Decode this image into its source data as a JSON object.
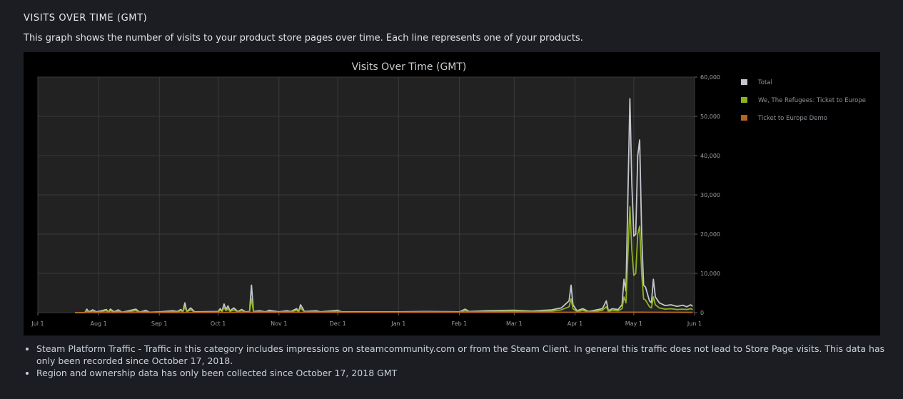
{
  "section": {
    "heading": "VISITS OVER TIME (GMT)",
    "description": "This graph shows the number of visits to your product store pages over time. Each line represents one of your products."
  },
  "notes": [
    "Steam Platform Traffic - Traffic in this category includes impressions on steamcommunity.com or from the Steam Client. In general this traffic does not lead to Store Page visits. This data has only been recorded since October 17, 2018.",
    "Region and ownership data has only been collected since October 17, 2018 GMT"
  ],
  "colors": {
    "page_background": "#1b1d22",
    "chart_background": "#000000",
    "plot_background": "#222222",
    "total": "#c3c6cc",
    "refugees": "#8fb21f",
    "demo": "#b5651d"
  },
  "chart_data": {
    "type": "line",
    "title": "Visits Over Time (GMT)",
    "xlabel": "",
    "ylabel": "",
    "y_axis_position": "right",
    "legend_position": "right",
    "grid": true,
    "x_ticks": [
      "Jul 1",
      "Aug 1",
      "Sep 1",
      "Oct 1",
      "Nov 1",
      "Dec 1",
      "Jan 1",
      "Feb 1",
      "Mar 1",
      "Apr 1",
      "May 1",
      "Jun 1"
    ],
    "y_ticks": [
      "60,000",
      "50,000",
      "40,000",
      "30,000",
      "20,000",
      "10,000",
      "0"
    ],
    "xlim": [
      "Jul 1",
      "Jun 1"
    ],
    "ylim": [
      0,
      60000
    ],
    "series": [
      {
        "name": "Total",
        "color": "#c3c6cc",
        "points": [
          [
            "Jul 20",
            0
          ],
          [
            "Jul 25",
            0
          ],
          [
            "Jul 26",
            900
          ],
          [
            "Jul 27",
            200
          ],
          [
            "Jul 29",
            700
          ],
          [
            "Jul 31",
            200
          ],
          [
            "Aug 5",
            800
          ],
          [
            "Aug 6",
            100
          ],
          [
            "Aug 7",
            900
          ],
          [
            "Aug 9",
            200
          ],
          [
            "Aug 11",
            700
          ],
          [
            "Aug 13",
            100
          ],
          [
            "Aug 20",
            900
          ],
          [
            "Aug 22",
            100
          ],
          [
            "Aug 25",
            600
          ],
          [
            "Aug 27",
            100
          ],
          [
            "Sep 1",
            200
          ],
          [
            "Sep 8",
            500
          ],
          [
            "Sep 10",
            300
          ],
          [
            "Sep 12",
            800
          ],
          [
            "Sep 13",
            300
          ],
          [
            "Sep 14",
            2500
          ],
          [
            "Sep 15",
            300
          ],
          [
            "Sep 17",
            1200
          ],
          [
            "Sep 19",
            200
          ],
          [
            "Oct 1",
            300
          ],
          [
            "Oct 2",
            1000
          ],
          [
            "Oct 3",
            400
          ],
          [
            "Oct 4",
            2200
          ],
          [
            "Oct 5",
            800
          ],
          [
            "Oct 6",
            1700
          ],
          [
            "Oct 7",
            500
          ],
          [
            "Oct 9",
            1200
          ],
          [
            "Oct 11",
            300
          ],
          [
            "Oct 13",
            800
          ],
          [
            "Oct 15",
            200
          ],
          [
            "Oct 17",
            300
          ],
          [
            "Oct 18",
            7000
          ],
          [
            "Oct 19",
            300
          ],
          [
            "Oct 22",
            500
          ],
          [
            "Oct 25",
            200
          ],
          [
            "Oct 27",
            600
          ],
          [
            "Nov 1",
            200
          ],
          [
            "Nov 5",
            500
          ],
          [
            "Nov 7",
            300
          ],
          [
            "Nov 10",
            1000
          ],
          [
            "Nov 11",
            300
          ],
          [
            "Nov 12",
            2000
          ],
          [
            "Nov 13",
            1200
          ],
          [
            "Nov 14",
            300
          ],
          [
            "Nov 20",
            500
          ],
          [
            "Nov 22",
            200
          ],
          [
            "Dec 1",
            600
          ],
          [
            "Dec 3",
            200
          ],
          [
            "Dec 15",
            200
          ],
          [
            "Jan 1",
            200
          ],
          [
            "Jan 15",
            300
          ],
          [
            "Feb 1",
            200
          ],
          [
            "Feb 4",
            900
          ],
          [
            "Feb 6",
            300
          ],
          [
            "Feb 15",
            500
          ],
          [
            "Mar 1",
            600
          ],
          [
            "Mar 10",
            400
          ],
          [
            "Mar 20",
            700
          ],
          [
            "Mar 25",
            1200
          ],
          [
            "Mar 29",
            3000
          ],
          [
            "Mar 30",
            7000
          ],
          [
            "Mar 31",
            2000
          ],
          [
            "Apr 2",
            500
          ],
          [
            "Apr 5",
            1000
          ],
          [
            "Apr 8",
            300
          ],
          [
            "Apr 12",
            700
          ],
          [
            "Apr 15",
            1000
          ],
          [
            "Apr 17",
            3000
          ],
          [
            "Apr 18",
            500
          ],
          [
            "Apr 20",
            1000
          ],
          [
            "Apr 23",
            800
          ],
          [
            "Apr 25",
            2000
          ],
          [
            "Apr 26",
            8500
          ],
          [
            "Apr 27",
            5500
          ],
          [
            "Apr 29",
            54500
          ],
          [
            "Apr 30",
            33000
          ],
          [
            "May 1",
            19500
          ],
          [
            "May 2",
            20000
          ],
          [
            "May 3",
            40000
          ],
          [
            "May 4",
            44000
          ],
          [
            "May 5",
            20000
          ],
          [
            "May 6",
            7000
          ],
          [
            "May 7",
            6500
          ],
          [
            "May 9",
            3000
          ],
          [
            "May 10",
            2500
          ],
          [
            "May 11",
            8500
          ],
          [
            "May 12",
            4000
          ],
          [
            "May 14",
            2500
          ],
          [
            "May 17",
            1800
          ],
          [
            "May 20",
            2000
          ],
          [
            "May 23",
            1600
          ],
          [
            "May 26",
            1900
          ],
          [
            "May 28",
            1500
          ],
          [
            "May 30",
            2000
          ],
          [
            "May 31",
            1600
          ]
        ]
      },
      {
        "name": "We, The Refugees: Ticket to Europe",
        "color": "#8fb21f",
        "points": [
          [
            "Jul 20",
            0
          ],
          [
            "Jul 25",
            0
          ],
          [
            "Jul 26",
            500
          ],
          [
            "Jul 27",
            100
          ],
          [
            "Jul 29",
            400
          ],
          [
            "Jul 31",
            100
          ],
          [
            "Aug 5",
            500
          ],
          [
            "Aug 6",
            100
          ],
          [
            "Aug 7",
            500
          ],
          [
            "Aug 9",
            100
          ],
          [
            "Aug 11",
            400
          ],
          [
            "Aug 13",
            100
          ],
          [
            "Aug 20",
            500
          ],
          [
            "Aug 22",
            100
          ],
          [
            "Aug 25",
            300
          ],
          [
            "Aug 27",
            100
          ],
          [
            "Sep 1",
            100
          ],
          [
            "Sep 8",
            300
          ],
          [
            "Sep 10",
            200
          ],
          [
            "Sep 12",
            500
          ],
          [
            "Sep 13",
            200
          ],
          [
            "Sep 14",
            1500
          ],
          [
            "Sep 15",
            200
          ],
          [
            "Sep 17",
            700
          ],
          [
            "Sep 19",
            100
          ],
          [
            "Oct 1",
            200
          ],
          [
            "Oct 2",
            600
          ],
          [
            "Oct 3",
            300
          ],
          [
            "Oct 4",
            1300
          ],
          [
            "Oct 5",
            500
          ],
          [
            "Oct 6",
            1000
          ],
          [
            "Oct 7",
            300
          ],
          [
            "Oct 9",
            700
          ],
          [
            "Oct 11",
            200
          ],
          [
            "Oct 13",
            500
          ],
          [
            "Oct 15",
            100
          ],
          [
            "Oct 17",
            200
          ],
          [
            "Oct 18",
            3500
          ],
          [
            "Oct 19",
            200
          ],
          [
            "Oct 22",
            300
          ],
          [
            "Oct 25",
            100
          ],
          [
            "Oct 27",
            300
          ],
          [
            "Nov 1",
            100
          ],
          [
            "Nov 5",
            300
          ],
          [
            "Nov 7",
            200
          ],
          [
            "Nov 10",
            600
          ],
          [
            "Nov 11",
            200
          ],
          [
            "Nov 12",
            1200
          ],
          [
            "Nov 13",
            700
          ],
          [
            "Nov 14",
            200
          ],
          [
            "Nov 20",
            300
          ],
          [
            "Nov 22",
            100
          ],
          [
            "Dec 1",
            400
          ],
          [
            "Dec 3",
            100
          ],
          [
            "Dec 15",
            100
          ],
          [
            "Jan 1",
            100
          ],
          [
            "Jan 15",
            200
          ],
          [
            "Feb 1",
            100
          ],
          [
            "Feb 4",
            500
          ],
          [
            "Feb 6",
            200
          ],
          [
            "Feb 15",
            300
          ],
          [
            "Mar 1",
            400
          ],
          [
            "Mar 10",
            300
          ],
          [
            "Mar 20",
            400
          ],
          [
            "Mar 25",
            700
          ],
          [
            "Mar 29",
            1500
          ],
          [
            "Mar 30",
            3500
          ],
          [
            "Mar 31",
            1000
          ],
          [
            "Apr 2",
            300
          ],
          [
            "Apr 5",
            600
          ],
          [
            "Apr 8",
            200
          ],
          [
            "Apr 12",
            400
          ],
          [
            "Apr 15",
            600
          ],
          [
            "Apr 17",
            1500
          ],
          [
            "Apr 18",
            300
          ],
          [
            "Apr 20",
            600
          ],
          [
            "Apr 23",
            500
          ],
          [
            "Apr 25",
            1000
          ],
          [
            "Apr 26",
            4000
          ],
          [
            "Apr 27",
            2500
          ],
          [
            "Apr 29",
            27000
          ],
          [
            "Apr 30",
            16000
          ],
          [
            "May 1",
            9500
          ],
          [
            "May 2",
            10000
          ],
          [
            "May 3",
            20000
          ],
          [
            "May 4",
            22000
          ],
          [
            "May 5",
            10000
          ],
          [
            "May 6",
            3500
          ],
          [
            "May 7",
            3200
          ],
          [
            "May 9",
            1500
          ],
          [
            "May 10",
            1200
          ],
          [
            "May 11",
            4000
          ],
          [
            "May 12",
            2000
          ],
          [
            "May 14",
            1200
          ],
          [
            "May 17",
            900
          ],
          [
            "May 20",
            1000
          ],
          [
            "May 23",
            800
          ],
          [
            "May 26",
            900
          ],
          [
            "May 28",
            800
          ],
          [
            "May 30",
            1000
          ],
          [
            "May 31",
            800
          ]
        ]
      },
      {
        "name": "Ticket to Europe Demo",
        "color": "#b5651d",
        "points": [
          [
            "Jul 20",
            0
          ],
          [
            "Sep 14",
            0
          ],
          [
            "Oct 18",
            50
          ],
          [
            "Apr 29",
            100
          ],
          [
            "May 4",
            100
          ],
          [
            "May 31",
            50
          ]
        ]
      }
    ]
  }
}
